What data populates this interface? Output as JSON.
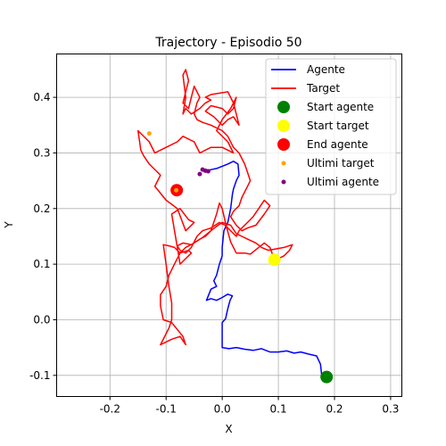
{
  "chart_data": {
    "type": "line",
    "title": "Trajectory - Episodio 50",
    "xlabel": "X",
    "ylabel": "Y",
    "xlim": [
      -0.295,
      0.32
    ],
    "ylim": [
      -0.138,
      0.478
    ],
    "xticks": [
      "-0.2",
      "-0.1",
      "0.0",
      "0.1",
      "0.2",
      "0.3"
    ],
    "xtick_values": [
      -0.2,
      -0.1,
      0.0,
      0.1,
      0.2,
      0.3
    ],
    "yticks": [
      "-0.1",
      "0.0",
      "0.1",
      "0.2",
      "0.3",
      "0.4"
    ],
    "ytick_values": [
      -0.1,
      0.0,
      0.1,
      0.2,
      0.3,
      0.4
    ],
    "grid": true,
    "legend_position": "top-right",
    "series": [
      {
        "name": "Agente",
        "type": "line",
        "color": "#0000ff",
        "points": [
          [
            0.186,
            -0.103
          ],
          [
            0.177,
            -0.098
          ],
          [
            0.175,
            -0.08
          ],
          [
            0.168,
            -0.065
          ],
          [
            0.155,
            -0.062
          ],
          [
            0.14,
            -0.058
          ],
          [
            0.128,
            -0.06
          ],
          [
            0.115,
            -0.056
          ],
          [
            0.1,
            -0.058
          ],
          [
            0.085,
            -0.058
          ],
          [
            0.07,
            -0.052
          ],
          [
            0.055,
            -0.055
          ],
          [
            0.04,
            -0.053
          ],
          [
            0.025,
            -0.05
          ],
          [
            0.012,
            -0.052
          ],
          [
            0.0,
            -0.05
          ],
          [
            0.0,
            -0.03
          ],
          [
            0.0,
            -0.005
          ],
          [
            0.006,
            0.002
          ],
          [
            0.01,
            0.02
          ],
          [
            0.014,
            0.035
          ],
          [
            0.018,
            0.043
          ],
          [
            0.01,
            0.046
          ],
          [
            0.0,
            0.04
          ],
          [
            -0.01,
            0.035
          ],
          [
            -0.02,
            0.038
          ],
          [
            -0.028,
            0.035
          ],
          [
            -0.02,
            0.055
          ],
          [
            -0.01,
            0.06
          ],
          [
            -0.015,
            0.07
          ],
          [
            -0.01,
            0.08
          ],
          [
            -0.005,
            0.1
          ],
          [
            0.0,
            0.115
          ],
          [
            0.0,
            0.13
          ],
          [
            0.003,
            0.16
          ],
          [
            0.01,
            0.175
          ],
          [
            0.015,
            0.2
          ],
          [
            0.018,
            0.225
          ],
          [
            0.02,
            0.235
          ],
          [
            0.025,
            0.25
          ],
          [
            0.03,
            0.26
          ],
          [
            0.028,
            0.28
          ],
          [
            0.02,
            0.285
          ],
          [
            0.01,
            0.28
          ],
          [
            0.0,
            0.276
          ],
          [
            -0.01,
            0.272
          ],
          [
            -0.02,
            0.27
          ],
          [
            -0.03,
            0.268
          ]
        ]
      },
      {
        "name": "Target",
        "type": "line",
        "color": "#ff0000",
        "points": [
          [
            0.093,
            0.108
          ],
          [
            0.085,
            0.13
          ],
          [
            0.075,
            0.138
          ],
          [
            0.065,
            0.13
          ],
          [
            0.05,
            0.118
          ],
          [
            0.04,
            0.12
          ],
          [
            0.025,
            0.12
          ],
          [
            0.015,
            0.14
          ],
          [
            0.008,
            0.165
          ],
          [
            0.0,
            0.2
          ],
          [
            -0.005,
            0.21
          ],
          [
            -0.01,
            0.19
          ],
          [
            -0.02,
            0.16
          ],
          [
            -0.035,
            0.148
          ],
          [
            -0.05,
            0.138
          ],
          [
            -0.065,
            0.13
          ],
          [
            -0.075,
            0.12
          ],
          [
            -0.085,
            0.13
          ],
          [
            -0.095,
            0.133
          ],
          [
            -0.105,
            0.135
          ],
          [
            -0.1,
            0.1
          ],
          [
            -0.095,
            0.06
          ],
          [
            -0.09,
            0.03
          ],
          [
            -0.09,
            0.0
          ],
          [
            -0.095,
            -0.015
          ],
          [
            -0.11,
            -0.045
          ],
          [
            -0.09,
            -0.035
          ],
          [
            -0.075,
            -0.03
          ],
          [
            -0.065,
            -0.045
          ],
          [
            -0.07,
            -0.03
          ],
          [
            -0.09,
            -0.005
          ],
          [
            -0.105,
            0.0
          ],
          [
            -0.11,
            0.025
          ],
          [
            -0.11,
            0.045
          ],
          [
            -0.1,
            0.06
          ],
          [
            -0.095,
            0.08
          ],
          [
            -0.085,
            0.1
          ],
          [
            -0.075,
            0.12
          ],
          [
            -0.06,
            0.125
          ],
          [
            -0.055,
            0.12
          ],
          [
            -0.065,
            0.11
          ],
          [
            -0.075,
            0.1
          ],
          [
            -0.08,
            0.13
          ],
          [
            -0.09,
            0.19
          ],
          [
            -0.075,
            0.2
          ],
          [
            -0.06,
            0.18
          ],
          [
            -0.05,
            0.175
          ],
          [
            -0.065,
            0.16
          ],
          [
            -0.08,
            0.2
          ],
          [
            -0.1,
            0.215
          ],
          [
            -0.12,
            0.24
          ],
          [
            -0.11,
            0.26
          ],
          [
            -0.13,
            0.28
          ],
          [
            -0.14,
            0.295
          ],
          [
            -0.145,
            0.305
          ],
          [
            -0.15,
            0.34
          ],
          [
            -0.13,
            0.32
          ],
          [
            -0.12,
            0.3
          ],
          [
            -0.1,
            0.31
          ],
          [
            -0.08,
            0.32
          ],
          [
            -0.07,
            0.33
          ],
          [
            -0.05,
            0.32
          ],
          [
            -0.04,
            0.3
          ],
          [
            -0.02,
            0.31
          ],
          [
            0.0,
            0.31
          ],
          [
            0.02,
            0.3
          ],
          [
            0.01,
            0.32
          ],
          [
            -0.01,
            0.34
          ],
          [
            0.0,
            0.36
          ],
          [
            0.015,
            0.38
          ],
          [
            0.025,
            0.4
          ],
          [
            0.02,
            0.38
          ],
          [
            0.01,
            0.37
          ],
          [
            0.0,
            0.38
          ],
          [
            -0.02,
            0.385
          ],
          [
            -0.03,
            0.375
          ],
          [
            -0.015,
            0.365
          ],
          [
            0.0,
            0.35
          ],
          [
            0.01,
            0.36
          ],
          [
            0.02,
            0.365
          ],
          [
            0.03,
            0.35
          ],
          [
            0.025,
            0.37
          ],
          [
            0.02,
            0.39
          ],
          [
            0.01,
            0.41
          ],
          [
            -0.02,
            0.405
          ],
          [
            -0.03,
            0.4
          ],
          [
            -0.02,
            0.395
          ],
          [
            -0.03,
            0.39
          ],
          [
            -0.04,
            0.38
          ],
          [
            -0.055,
            0.37
          ],
          [
            -0.065,
            0.38
          ],
          [
            -0.07,
            0.37
          ],
          [
            -0.065,
            0.4
          ],
          [
            -0.07,
            0.44
          ],
          [
            -0.065,
            0.45
          ],
          [
            -0.06,
            0.43
          ],
          [
            -0.065,
            0.41
          ],
          [
            -0.07,
            0.39
          ],
          [
            -0.06,
            0.38
          ],
          [
            -0.055,
            0.4
          ],
          [
            -0.05,
            0.42
          ],
          [
            -0.045,
            0.41
          ],
          [
            -0.04,
            0.4
          ],
          [
            -0.045,
            0.39
          ],
          [
            -0.05,
            0.37
          ],
          [
            -0.045,
            0.36
          ],
          [
            -0.035,
            0.355
          ],
          [
            -0.02,
            0.35
          ],
          [
            0.0,
            0.34
          ],
          [
            0.01,
            0.33
          ],
          [
            0.02,
            0.31
          ],
          [
            0.03,
            0.3
          ],
          [
            0.04,
            0.28
          ],
          [
            0.045,
            0.265
          ],
          [
            0.05,
            0.25
          ],
          [
            0.045,
            0.24
          ],
          [
            0.04,
            0.23
          ],
          [
            0.035,
            0.22
          ],
          [
            0.03,
            0.205
          ],
          [
            0.02,
            0.195
          ],
          [
            0.015,
            0.185
          ],
          [
            0.025,
            0.17
          ],
          [
            0.035,
            0.16
          ],
          [
            0.045,
            0.165
          ],
          [
            0.06,
            0.17
          ],
          [
            0.075,
            0.19
          ],
          [
            0.085,
            0.205
          ],
          [
            0.075,
            0.215
          ],
          [
            0.065,
            0.2
          ],
          [
            0.055,
            0.185
          ],
          [
            0.045,
            0.175
          ],
          [
            0.03,
            0.16
          ],
          [
            0.025,
            0.15
          ],
          [
            0.015,
            0.16
          ],
          [
            0.005,
            0.17
          ],
          [
            -0.005,
            0.175
          ],
          [
            -0.02,
            0.165
          ],
          [
            -0.035,
            0.16
          ],
          [
            -0.045,
            0.15
          ],
          [
            -0.055,
            0.13
          ],
          [
            -0.065,
            0.12
          ],
          [
            -0.075,
            0.125
          ],
          [
            -0.08,
            0.133
          ],
          [
            -0.07,
            0.138
          ],
          [
            -0.055,
            0.135
          ],
          [
            -0.04,
            0.145
          ],
          [
            -0.03,
            0.15
          ],
          [
            -0.02,
            0.16
          ],
          [
            -0.01,
            0.168
          ],
          [
            0.0,
            0.175
          ],
          [
            0.015,
            0.17
          ],
          [
            0.025,
            0.155
          ],
          [
            0.035,
            0.15
          ],
          [
            0.045,
            0.145
          ],
          [
            0.06,
            0.138
          ],
          [
            0.07,
            0.13
          ],
          [
            0.082,
            0.125
          ],
          [
            0.094,
            0.127
          ],
          [
            0.11,
            0.13
          ],
          [
            0.125,
            0.135
          ],
          [
            0.12,
            0.125
          ],
          [
            0.11,
            0.115
          ],
          [
            0.1,
            0.11
          ]
        ]
      }
    ],
    "markers": [
      {
        "name": "Start agente",
        "x": 0.186,
        "y": -0.103,
        "color": "#008000",
        "size": "large"
      },
      {
        "name": "Start target",
        "x": 0.093,
        "y": 0.108,
        "color": "#ffff00",
        "size": "large"
      },
      {
        "name": "End agente",
        "x": -0.081,
        "y": 0.233,
        "color": "#ff0000",
        "size": "large"
      }
    ],
    "scatter": [
      {
        "name": "Ultimi target",
        "color": "#ffa500",
        "points": [
          [
            -0.13,
            0.335
          ],
          [
            -0.082,
            0.233
          ]
        ]
      },
      {
        "name": "Ultimi agente",
        "color": "#800080",
        "points": [
          [
            -0.04,
            0.262
          ],
          [
            -0.035,
            0.27
          ],
          [
            -0.03,
            0.268
          ],
          [
            -0.025,
            0.267
          ]
        ]
      }
    ],
    "legend": [
      "Agente",
      "Target",
      "Start agente",
      "Start target",
      "End agente",
      "Ultimi target",
      "Ultimi agente"
    ]
  }
}
